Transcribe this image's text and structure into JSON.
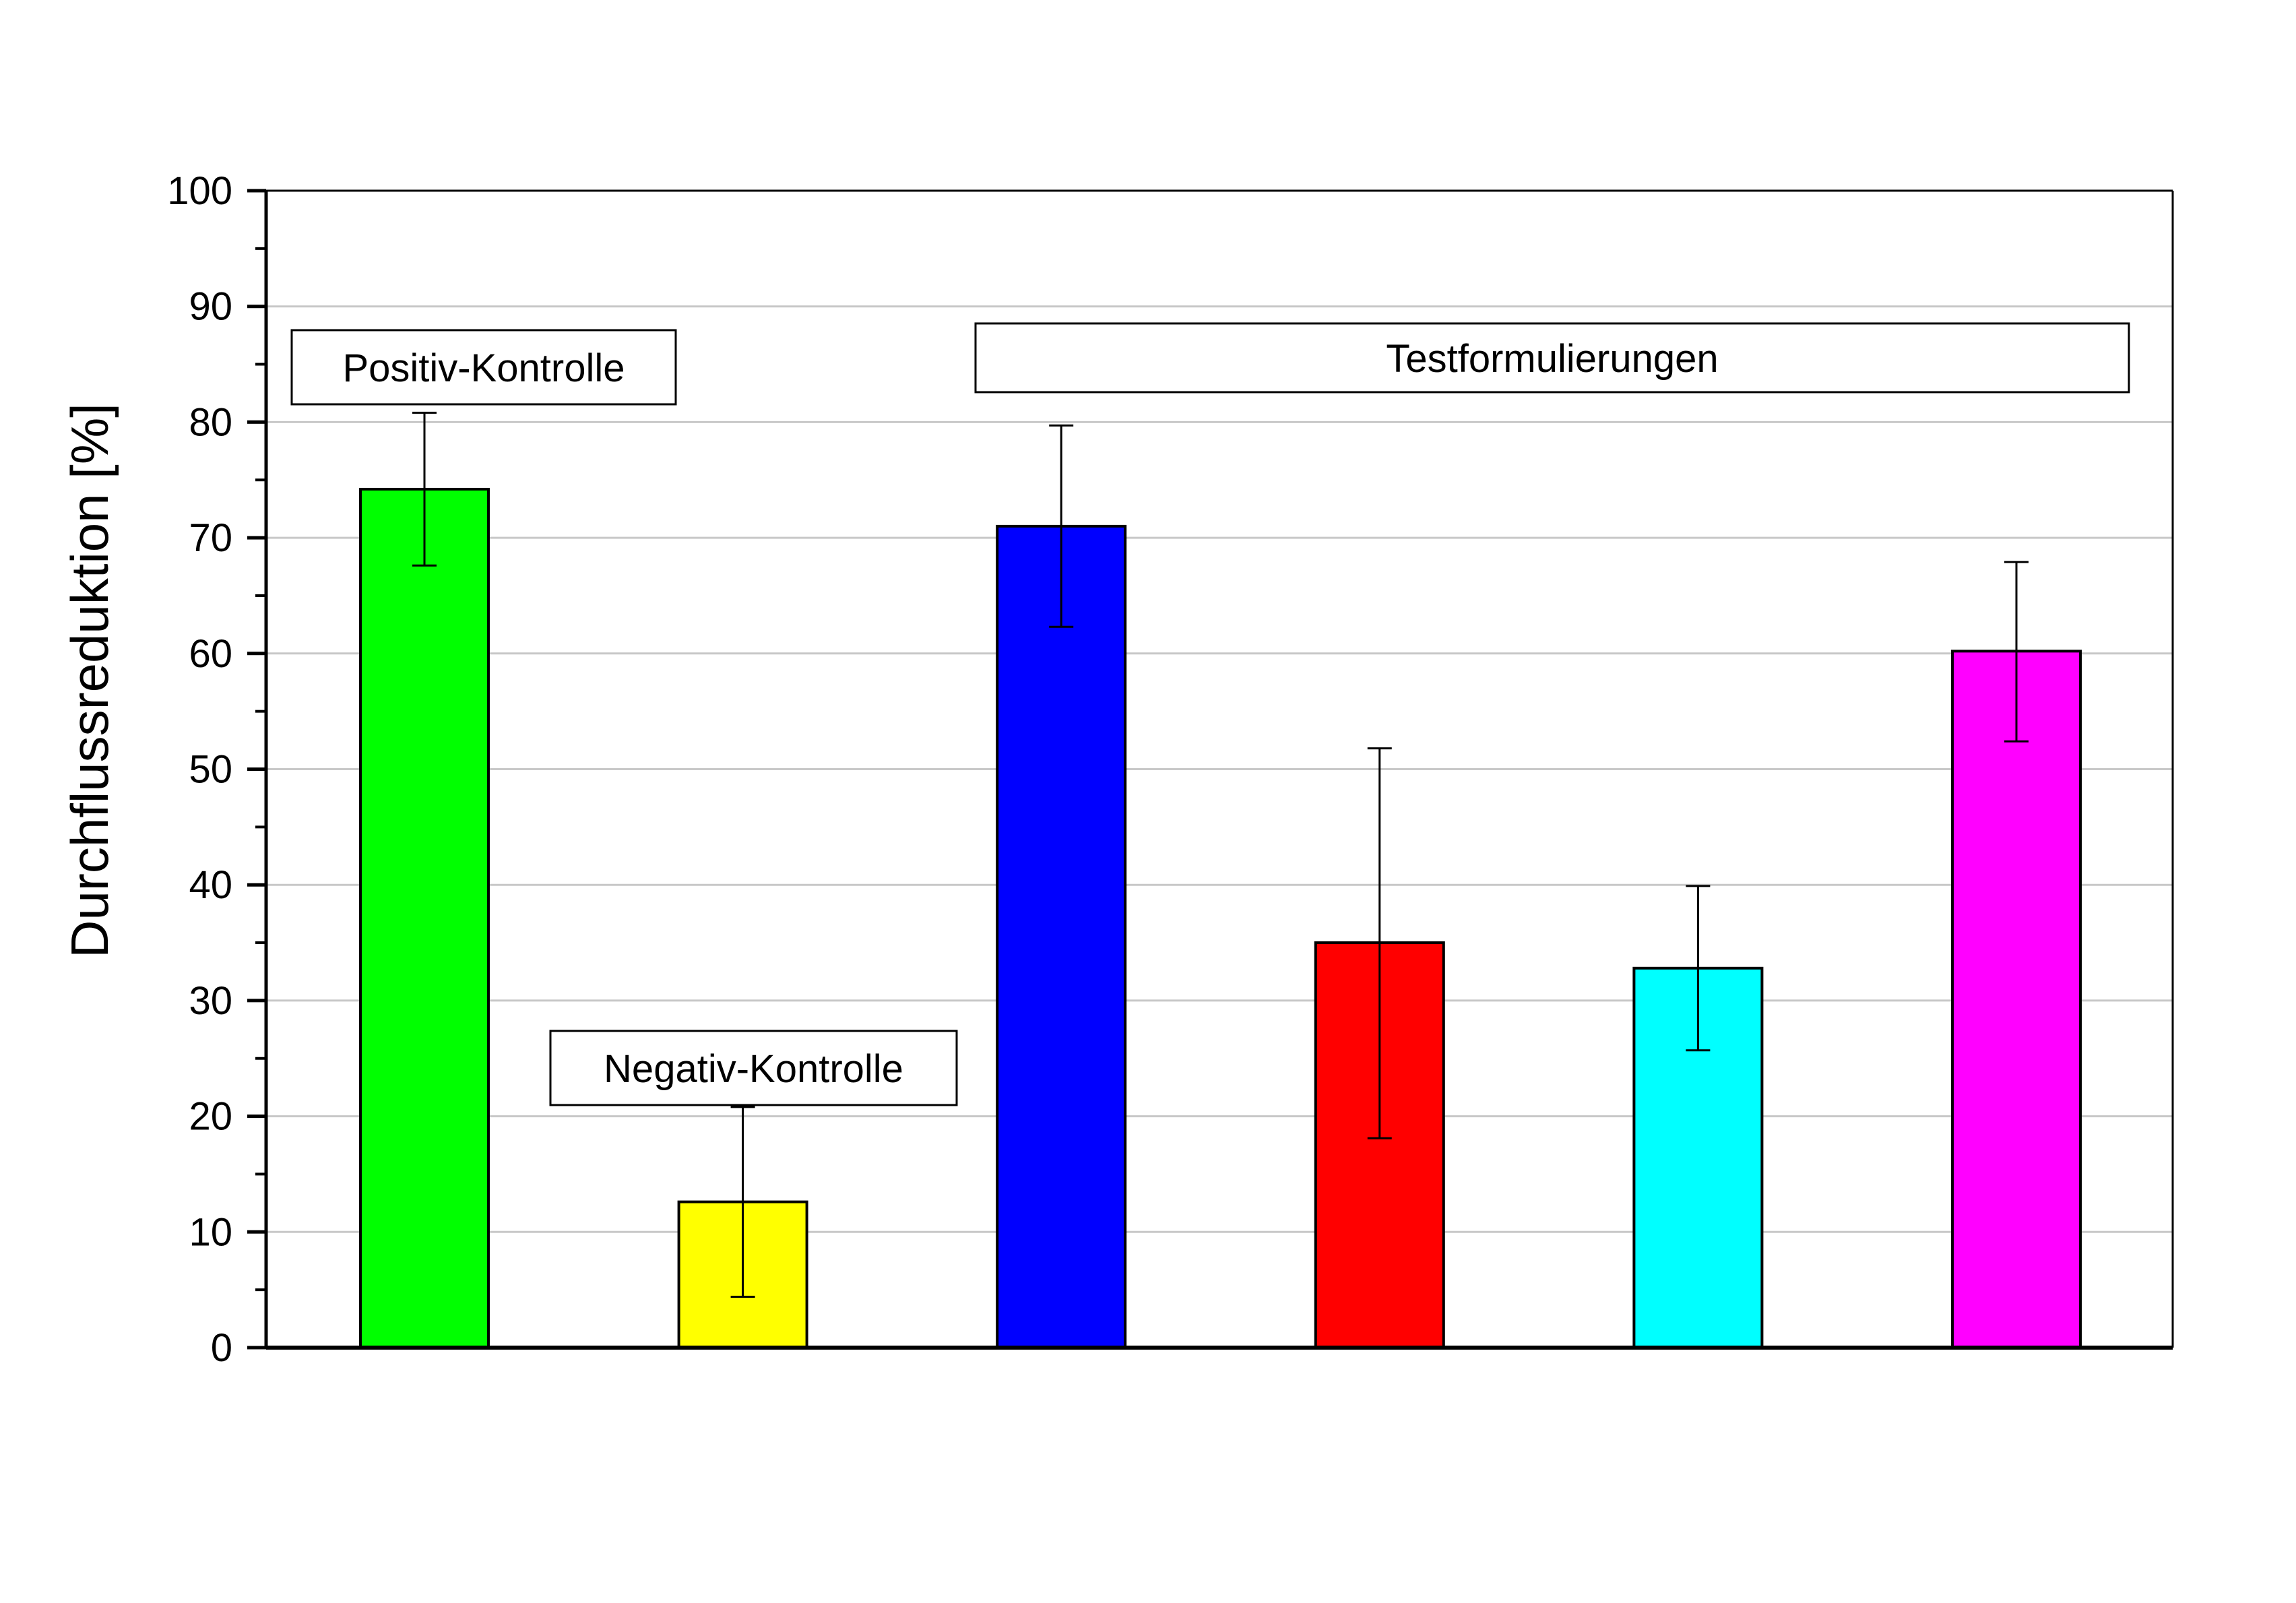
{
  "chart_data": {
    "type": "bar",
    "title": "",
    "xlabel": "",
    "ylabel": "Durchflussreduktion [%]",
    "ylim": [
      0,
      100
    ],
    "yticks": [
      0,
      10,
      20,
      30,
      40,
      50,
      60,
      70,
      80,
      90,
      100
    ],
    "grid": true,
    "bars": [
      {
        "value": 74.2,
        "error_low": 67.6,
        "error_high": 80.8,
        "color": "#00ff00"
      },
      {
        "value": 12.6,
        "error_low": 4.4,
        "error_high": 20.8,
        "color": "#ffff00"
      },
      {
        "value": 71.0,
        "error_low": 62.3,
        "error_high": 79.7,
        "color": "#0000ff"
      },
      {
        "value": 35.0,
        "error_low": 18.1,
        "error_high": 51.8,
        "color": "#ff0000"
      },
      {
        "value": 32.8,
        "error_low": 25.7,
        "error_high": 39.9,
        "color": "#00ffff"
      },
      {
        "value": 60.2,
        "error_low": 52.4,
        "error_high": 67.9,
        "color": "#ff00ff"
      }
    ],
    "annotations": [
      {
        "text": "Positiv-Kontrolle",
        "spans": [
          0
        ]
      },
      {
        "text": "Negativ-Kontrolle",
        "spans": [
          1
        ]
      },
      {
        "text": "Testformulierungen",
        "spans": [
          2,
          5
        ]
      }
    ]
  }
}
